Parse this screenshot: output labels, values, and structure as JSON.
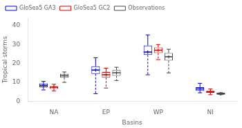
{
  "chart_data": {
    "type": "box",
    "xlabel": "Basins",
    "ylabel": "Tropical storms",
    "categories": [
      "NA",
      "EP",
      "WP",
      "NI"
    ],
    "series": [
      {
        "name": "GloSea5 GA3",
        "color": "#0000cc",
        "values": [
          {
            "whislo": 6.0,
            "q1": 7.5,
            "med": 8.5,
            "q3": 9.5,
            "whishi": 10.5,
            "mean": 8.5
          },
          {
            "whislo": 4.0,
            "q1": 14.5,
            "med": 16.5,
            "q3": 18.5,
            "whishi": 23.0,
            "mean": 16.5
          },
          {
            "whislo": 14.0,
            "q1": 24.5,
            "med": 26.0,
            "q3": 29.5,
            "whishi": 35.0,
            "mean": 26.0
          },
          {
            "whislo": 4.5,
            "q1": 5.5,
            "med": 6.5,
            "q3": 7.5,
            "whishi": 9.5,
            "mean": 6.5
          }
        ]
      },
      {
        "name": "GloSea5 GC2",
        "color": "#cc0000",
        "values": [
          {
            "whislo": 5.5,
            "q1": 6.5,
            "med": 7.5,
            "q3": 8.0,
            "whishi": 9.0,
            "mean": 7.5
          },
          {
            "whislo": 7.0,
            "q1": 12.5,
            "med": 14.0,
            "q3": 15.5,
            "whishi": 17.5,
            "mean": 14.0
          },
          {
            "whislo": 22.0,
            "q1": 25.5,
            "med": 27.0,
            "q3": 28.5,
            "whishi": 30.0,
            "mean": 27.0
          },
          {
            "whislo": 3.5,
            "q1": 4.5,
            "med": 5.0,
            "q3": 5.5,
            "whishi": 6.5,
            "mean": 5.0
          }
        ]
      },
      {
        "name": "Observations",
        "color": "#444444",
        "values": [
          {
            "whislo": 10.0,
            "q1": 12.5,
            "med": 13.5,
            "q3": 14.5,
            "whishi": 15.5,
            "mean": 13.5
          },
          {
            "whislo": 11.0,
            "q1": 13.5,
            "med": 15.0,
            "q3": 16.5,
            "whishi": 18.0,
            "mean": 15.0
          },
          {
            "whislo": 15.0,
            "q1": 21.5,
            "med": 23.5,
            "q3": 25.5,
            "whishi": 27.5,
            "mean": 23.5
          },
          {
            "whislo": 3.5,
            "q1": 3.5,
            "med": 4.0,
            "q3": 4.5,
            "whishi": 4.5,
            "mean": 4.0
          }
        ]
      }
    ],
    "ylim": [
      0,
      44
    ],
    "yticks": [
      0,
      10,
      20,
      30,
      40
    ],
    "grid": false,
    "legend": "upper left"
  }
}
